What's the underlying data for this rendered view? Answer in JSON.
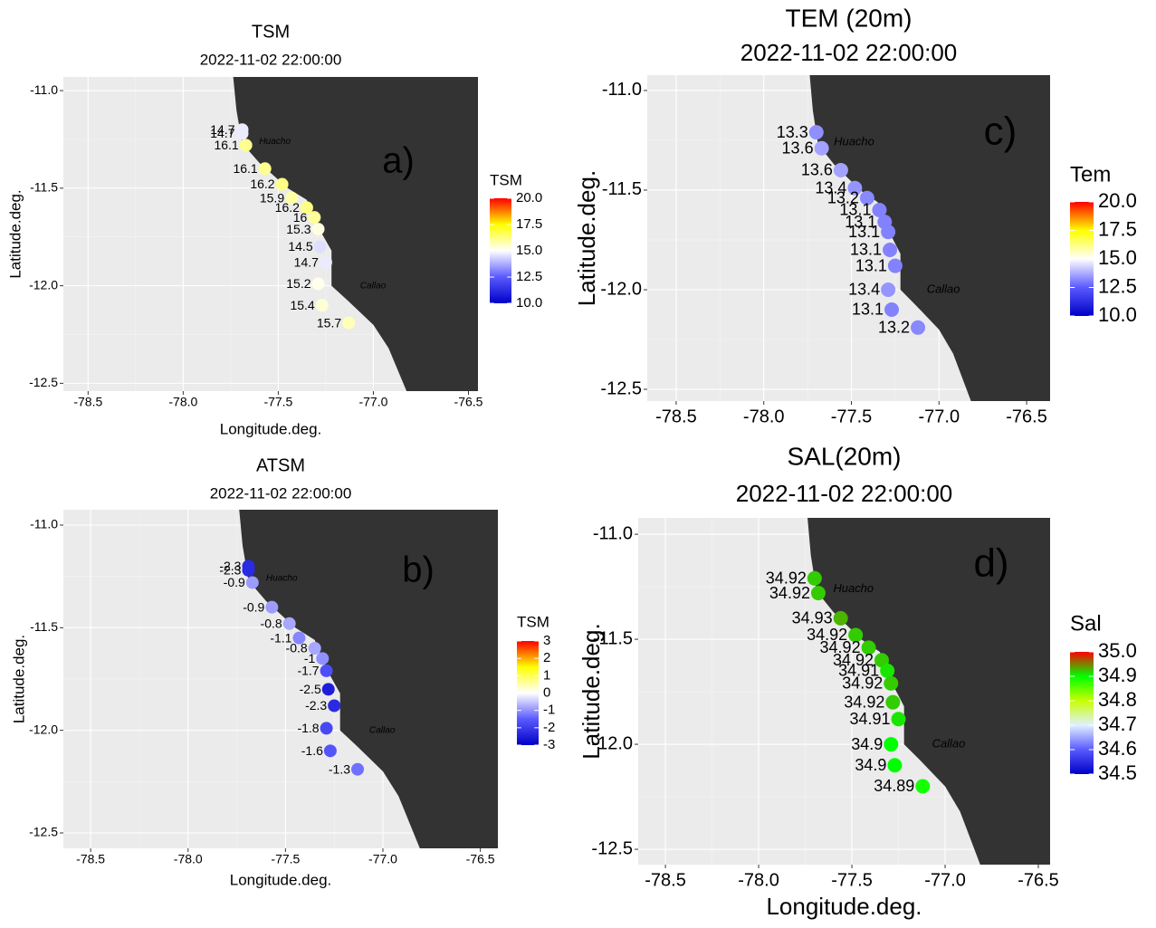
{
  "chart_data": [
    {
      "type": "scatter",
      "title": "TSM",
      "subtitle": "2022-11-02 22:00:00",
      "xlabel": "Longitude.deg.",
      "ylabel": "Latitude.deg.",
      "panel_label": "a)",
      "places": [
        "Huacho",
        "Callao"
      ],
      "x": [
        -77.69,
        -77.69,
        -77.67,
        -77.57,
        -77.48,
        -77.43,
        -77.35,
        -77.31,
        -77.29,
        -77.28,
        -77.25,
        -77.29,
        -77.27,
        -77.13
      ],
      "y": [
        -11.2,
        -11.22,
        -11.28,
        -11.4,
        -11.48,
        -11.55,
        -11.6,
        -11.65,
        -11.71,
        -11.8,
        -11.88,
        -11.99,
        -12.1,
        -12.19
      ],
      "values": [
        14.7,
        14.7,
        16.1,
        16.1,
        16.2,
        15.9,
        16.2,
        16,
        15.3,
        14.5,
        14.7,
        15.2,
        15.4,
        15.7
      ],
      "xlim": [
        -78.63,
        -76.45
      ],
      "ylim": [
        -12.54,
        -10.93
      ],
      "xticks": [
        -78.5,
        {
          "value": -78,
          "label": "-78.0"
        },
        -77.5,
        {
          "value": -77,
          "label": "-77.0"
        },
        -76.5
      ],
      "yticks": [
        {
          "value": -11,
          "label": "-11.0"
        },
        -11.5,
        {
          "value": -12,
          "label": "-12.0"
        },
        -12.5
      ],
      "colorbar_title": "TSM",
      "clim": [
        10,
        20
      ],
      "cticks": [
        {
          "value": 10,
          "label": "10.0"
        },
        12.5,
        {
          "value": 15,
          "label": "15.0"
        },
        17.5,
        {
          "value": 20,
          "label": "20.0"
        }
      ],
      "colors": [
        "#0000c8",
        "#5a5aff",
        "#ffffff",
        "#ffff00",
        "#ff0000"
      ]
    },
    {
      "type": "scatter",
      "title": "ATSM",
      "subtitle": "2022-11-02 22:00:00",
      "xlabel": "Longitude.deg.",
      "ylabel": "Latitude.deg.",
      "panel_label": "b)",
      "places": [
        "Huacho",
        "Callao"
      ],
      "x": [
        -77.69,
        -77.69,
        -77.67,
        -77.57,
        -77.48,
        -77.43,
        -77.35,
        -77.31,
        -77.29,
        -77.28,
        -77.25,
        -77.29,
        -77.27,
        -77.13
      ],
      "y": [
        -11.2,
        -11.22,
        -11.28,
        -11.4,
        -11.48,
        -11.55,
        -11.6,
        -11.65,
        -11.71,
        -11.8,
        -11.88,
        -11.99,
        -12.1,
        -12.19
      ],
      "values": [
        -2.3,
        -2.3,
        -0.9,
        -0.9,
        -0.8,
        -1.1,
        -0.8,
        -1,
        -1.7,
        -2.5,
        -2.3,
        -1.8,
        -1.6,
        -1.3
      ],
      "xlim": [
        -78.64,
        -76.41
      ],
      "ylim": [
        -12.575,
        -10.925
      ],
      "xticks": [
        -78.5,
        {
          "value": -78,
          "label": "-78.0"
        },
        -77.5,
        {
          "value": -77,
          "label": "-77.0"
        },
        -76.5
      ],
      "yticks": [
        {
          "value": -11,
          "label": "-11.0"
        },
        -11.5,
        {
          "value": -12,
          "label": "-12.0"
        },
        -12.5
      ],
      "colorbar_title": "TSM",
      "clim": [
        -3,
        3
      ],
      "cticks": [
        -3,
        -2,
        -1,
        0,
        1,
        2,
        3
      ],
      "colors": [
        "#0000c8",
        "#5a5aff",
        "#ffffff",
        "#ffff00",
        "#ff0000"
      ]
    },
    {
      "type": "scatter",
      "title": "TEM (20m)",
      "subtitle": "2022-11-02 22:00:00",
      "ylabel": "Latitude.deg.",
      "panel_label": "c)",
      "places": [
        "Huacho",
        "Callao"
      ],
      "x": [
        -77.7,
        -77.67,
        -77.56,
        -77.48,
        -77.41,
        -77.34,
        -77.31,
        -77.29,
        -77.28,
        -77.25,
        -77.29,
        -77.27,
        -77.12
      ],
      "y": [
        -11.21,
        -11.29,
        -11.4,
        -11.49,
        -11.54,
        -11.6,
        -11.66,
        -11.71,
        -11.8,
        -11.88,
        -12.0,
        -12.1,
        -12.19
      ],
      "values": [
        13.3,
        13.6,
        13.6,
        13.4,
        13.2,
        13.1,
        13.1,
        13.1,
        13.1,
        13.1,
        13.4,
        13.1,
        13.2
      ],
      "xlim": [
        -78.665,
        -76.366
      ],
      "ylim": [
        -12.559,
        -10.923
      ],
      "xticks": [
        -78.5,
        {
          "value": -78,
          "label": "-78.0"
        },
        -77.5,
        {
          "value": -77,
          "label": "-77.0"
        },
        -76.5
      ],
      "yticks": [
        {
          "value": -11,
          "label": "-11.0"
        },
        -11.5,
        {
          "value": -12,
          "label": "-12.0"
        },
        -12.5
      ],
      "colorbar_title": "Tem",
      "clim": [
        10,
        20
      ],
      "cticks": [
        {
          "value": 10,
          "label": "10.0"
        },
        12.5,
        {
          "value": 15,
          "label": "15.0"
        },
        17.5,
        {
          "value": 20,
          "label": "20.0"
        }
      ],
      "colors": [
        "#0000c8",
        "#5a5aff",
        "#ffffff",
        "#ffff00",
        "#ff0000"
      ]
    },
    {
      "type": "scatter",
      "title": "SAL(20m)",
      "subtitle": "2022-11-02 22:00:00",
      "xlabel": "Longitude.deg.",
      "ylabel": "Latitude.deg.",
      "panel_label": "d)",
      "places": [
        "Huacho",
        "Callao"
      ],
      "x": [
        -77.7,
        -77.68,
        -77.56,
        -77.48,
        -77.41,
        -77.34,
        -77.31,
        -77.29,
        -77.28,
        -77.25,
        -77.29,
        -77.27,
        -77.12
      ],
      "y": [
        -11.21,
        -11.28,
        -11.4,
        -11.48,
        -11.54,
        -11.6,
        -11.65,
        -11.71,
        -11.8,
        -11.88,
        -12.0,
        -12.1,
        -12.2
      ],
      "values": [
        34.92,
        34.92,
        34.93,
        34.92,
        34.92,
        34.92,
        34.91,
        34.92,
        34.92,
        34.91,
        34.9,
        34.9,
        34.89
      ],
      "xlim": [
        -78.646,
        -76.437
      ],
      "ylim": [
        -12.573,
        -10.922
      ],
      "xticks": [
        -78.5,
        {
          "value": -78,
          "label": "-78.0"
        },
        -77.5,
        {
          "value": -77,
          "label": "-77.0"
        },
        -76.5
      ],
      "yticks": [
        {
          "value": -11,
          "label": "-11.0"
        },
        -11.5,
        {
          "value": -12,
          "label": "-12.0"
        },
        -12.5
      ],
      "colorbar_title": "Sal",
      "clim": [
        34.5,
        35
      ],
      "cticks": [
        34.5,
        34.6,
        34.7,
        34.8,
        34.9,
        {
          "value": 35,
          "label": "35.0"
        }
      ],
      "colors": [
        "#0000c8",
        "#5a5aff",
        "#e0f0ff",
        "#c8ff00",
        "#00ff00",
        "#ff0000"
      ]
    }
  ]
}
